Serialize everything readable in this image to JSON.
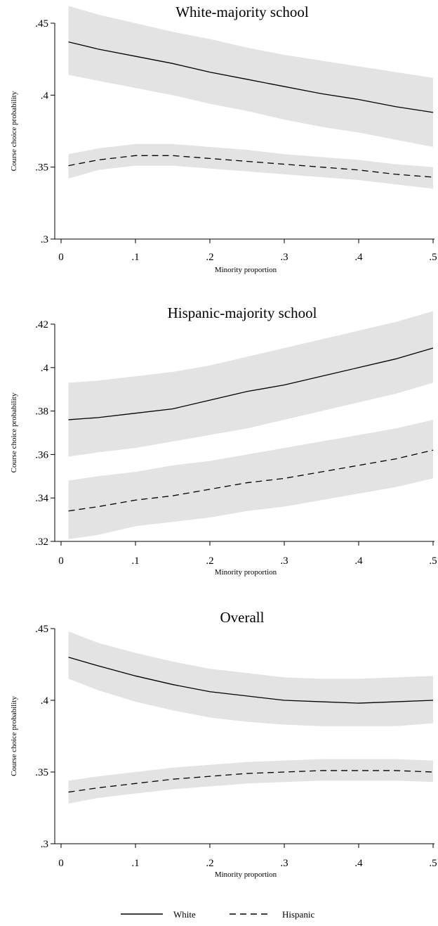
{
  "legend": {
    "white_label": "White",
    "hispanic_label": "Hispanic"
  },
  "chart_data": [
    {
      "type": "line",
      "title": "White-majority school",
      "xlabel": "Minority proportion",
      "ylabel": "Course choice probability",
      "xlim": [
        0,
        0.5
      ],
      "ylim": [
        0.3,
        0.45
      ],
      "xticks": [
        0,
        0.1,
        0.2,
        0.3,
        0.4,
        0.5
      ],
      "xtick_labels": [
        "0",
        ".1",
        ".2",
        ".3",
        ".4",
        ".5"
      ],
      "yticks": [
        0.3,
        0.35,
        0.4,
        0.45
      ],
      "ytick_labels": [
        ".3",
        ".35",
        ".4",
        ".45"
      ],
      "grid": false,
      "x": [
        0.01,
        0.05,
        0.1,
        0.15,
        0.2,
        0.25,
        0.3,
        0.35,
        0.4,
        0.45,
        0.5
      ],
      "series": [
        {
          "name": "White",
          "style": "solid",
          "values": [
            0.437,
            0.432,
            0.427,
            0.422,
            0.416,
            0.411,
            0.406,
            0.401,
            0.397,
            0.392,
            0.388
          ],
          "ci_lower": [
            0.414,
            0.41,
            0.405,
            0.4,
            0.394,
            0.389,
            0.383,
            0.378,
            0.374,
            0.369,
            0.364
          ],
          "ci_upper": [
            0.462,
            0.456,
            0.45,
            0.444,
            0.439,
            0.433,
            0.428,
            0.424,
            0.42,
            0.416,
            0.412
          ]
        },
        {
          "name": "Hispanic",
          "style": "dashed",
          "values": [
            0.351,
            0.355,
            0.358,
            0.358,
            0.356,
            0.354,
            0.352,
            0.35,
            0.348,
            0.345,
            0.343
          ],
          "ci_lower": [
            0.342,
            0.348,
            0.351,
            0.351,
            0.349,
            0.347,
            0.345,
            0.343,
            0.341,
            0.338,
            0.335
          ],
          "ci_upper": [
            0.359,
            0.363,
            0.366,
            0.366,
            0.364,
            0.362,
            0.359,
            0.357,
            0.355,
            0.352,
            0.35
          ]
        }
      ]
    },
    {
      "type": "line",
      "title": "Hispanic-majority school",
      "xlabel": "Minority proportion",
      "ylabel": "Course choice probability",
      "xlim": [
        0,
        0.5
      ],
      "ylim": [
        0.32,
        0.42
      ],
      "xticks": [
        0,
        0.1,
        0.2,
        0.3,
        0.4,
        0.5
      ],
      "xtick_labels": [
        "0",
        ".1",
        ".2",
        ".3",
        ".4",
        ".5"
      ],
      "yticks": [
        0.32,
        0.34,
        0.36,
        0.38,
        0.4,
        0.42
      ],
      "ytick_labels": [
        ".32",
        ".34",
        ".36",
        ".38",
        ".4",
        ".42"
      ],
      "grid": false,
      "x": [
        0.01,
        0.05,
        0.1,
        0.15,
        0.2,
        0.25,
        0.3,
        0.35,
        0.4,
        0.45,
        0.5
      ],
      "series": [
        {
          "name": "White",
          "style": "solid",
          "values": [
            0.376,
            0.377,
            0.379,
            0.381,
            0.385,
            0.389,
            0.392,
            0.396,
            0.4,
            0.404,
            0.409
          ],
          "ci_lower": [
            0.359,
            0.361,
            0.363,
            0.366,
            0.369,
            0.372,
            0.376,
            0.38,
            0.384,
            0.388,
            0.393
          ],
          "ci_upper": [
            0.393,
            0.394,
            0.396,
            0.398,
            0.401,
            0.405,
            0.409,
            0.413,
            0.417,
            0.421,
            0.426
          ]
        },
        {
          "name": "Hispanic",
          "style": "dashed",
          "values": [
            0.334,
            0.336,
            0.339,
            0.341,
            0.344,
            0.347,
            0.349,
            0.352,
            0.355,
            0.358,
            0.362
          ],
          "ci_lower": [
            0.321,
            0.323,
            0.327,
            0.329,
            0.331,
            0.334,
            0.336,
            0.339,
            0.342,
            0.345,
            0.349
          ],
          "ci_upper": [
            0.348,
            0.35,
            0.352,
            0.355,
            0.357,
            0.36,
            0.363,
            0.366,
            0.369,
            0.372,
            0.376
          ]
        }
      ]
    },
    {
      "type": "line",
      "title": "Overall",
      "xlabel": "Minority proportion",
      "ylabel": "Course choice probability",
      "xlim": [
        0,
        0.5
      ],
      "ylim": [
        0.3,
        0.45
      ],
      "xticks": [
        0,
        0.1,
        0.2,
        0.3,
        0.4,
        0.5
      ],
      "xtick_labels": [
        "0",
        ".1",
        ".2",
        ".3",
        ".4",
        ".5"
      ],
      "yticks": [
        0.3,
        0.35,
        0.4,
        0.45
      ],
      "ytick_labels": [
        ".3",
        ".35",
        ".4",
        ".45"
      ],
      "grid": false,
      "x": [
        0.01,
        0.05,
        0.1,
        0.15,
        0.2,
        0.25,
        0.3,
        0.35,
        0.4,
        0.45,
        0.5
      ],
      "series": [
        {
          "name": "White",
          "style": "solid",
          "values": [
            0.43,
            0.424,
            0.417,
            0.411,
            0.406,
            0.403,
            0.4,
            0.399,
            0.398,
            0.399,
            0.4
          ],
          "ci_lower": [
            0.415,
            0.407,
            0.399,
            0.393,
            0.388,
            0.385,
            0.383,
            0.382,
            0.382,
            0.382,
            0.384
          ],
          "ci_upper": [
            0.448,
            0.44,
            0.433,
            0.427,
            0.422,
            0.419,
            0.416,
            0.415,
            0.415,
            0.416,
            0.417
          ]
        },
        {
          "name": "Hispanic",
          "style": "dashed",
          "values": [
            0.336,
            0.339,
            0.342,
            0.345,
            0.347,
            0.349,
            0.35,
            0.351,
            0.351,
            0.351,
            0.35
          ],
          "ci_lower": [
            0.328,
            0.332,
            0.335,
            0.338,
            0.34,
            0.342,
            0.343,
            0.344,
            0.344,
            0.344,
            0.343
          ],
          "ci_upper": [
            0.344,
            0.347,
            0.35,
            0.353,
            0.355,
            0.357,
            0.358,
            0.359,
            0.359,
            0.359,
            0.358
          ]
        }
      ]
    }
  ]
}
